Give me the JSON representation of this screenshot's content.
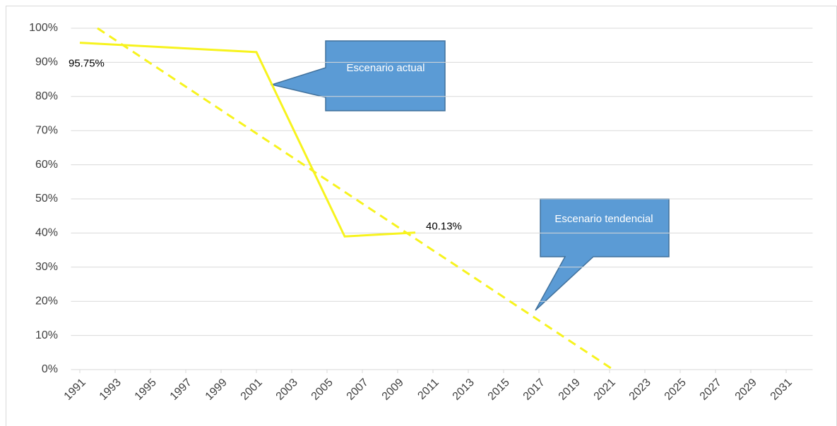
{
  "chart_data": {
    "type": "line",
    "xlim": [
      1990.5,
      2032.5
    ],
    "xticks": [
      1991,
      1993,
      1995,
      1997,
      1999,
      2001,
      2003,
      2005,
      2007,
      2009,
      2011,
      2013,
      2015,
      2017,
      2019,
      2021,
      2023,
      2025,
      2027,
      2029,
      2031
    ],
    "ylim": [
      0,
      100
    ],
    "yticks": [
      {
        "value": 0,
        "label": "0%"
      },
      {
        "value": 10,
        "label": "10%"
      },
      {
        "value": 20,
        "label": "20%"
      },
      {
        "value": 30,
        "label": "30%"
      },
      {
        "value": 40,
        "label": "40%"
      },
      {
        "value": 50,
        "label": "50%"
      },
      {
        "value": 60,
        "label": "60%"
      },
      {
        "value": 70,
        "label": "70%"
      },
      {
        "value": 80,
        "label": "80%"
      },
      {
        "value": 90,
        "label": "90%"
      },
      {
        "value": 100,
        "label": "100%"
      }
    ],
    "grid": true,
    "series": [
      {
        "color": "#f7f31e",
        "dash": false,
        "x": [
          1991,
          2001,
          2006,
          2010
        ],
        "values": [
          95.75,
          93,
          39,
          40.13
        ],
        "value_labels": [
          "95.75%",
          null,
          null,
          "40.13%"
        ]
      },
      {
        "color": "#f7f31e",
        "dash": true,
        "x": [
          1992,
          2021.2
        ],
        "values": [
          100,
          0
        ]
      }
    ],
    "annotations": [
      {
        "text": "Escenario actual"
      },
      {
        "text": "Escenario tendencial"
      }
    ]
  }
}
